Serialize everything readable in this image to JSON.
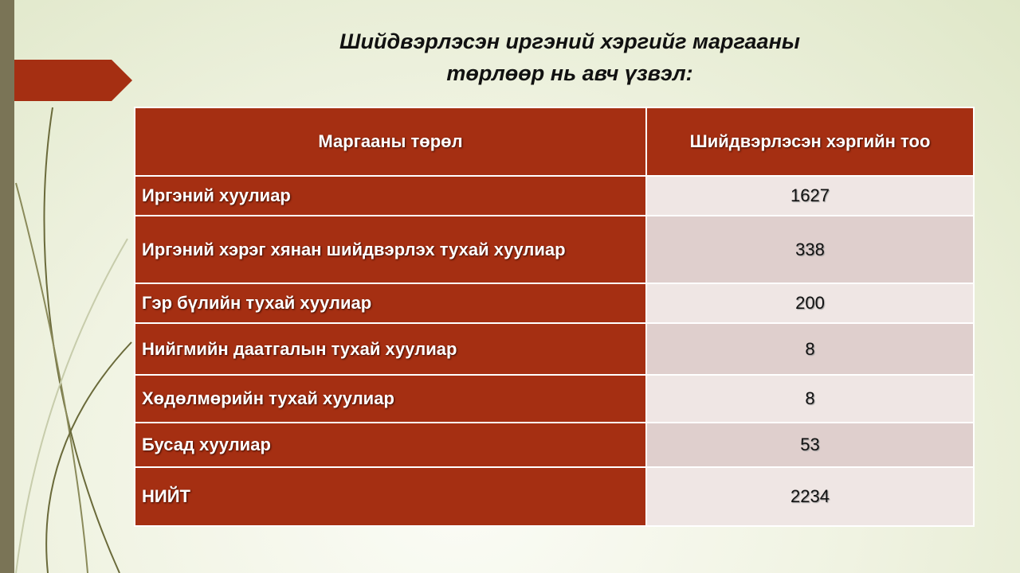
{
  "title_lines": [
    "Шийдвэрлэсэн иргэний хэргийг маргааны",
    "төрлөөр нь авч үзвэл:"
  ],
  "table": {
    "header": [
      "Маргааны төрөл",
      "Шийдвэрлэсэн хэргийн тоо"
    ],
    "rows": [
      [
        "Иргэний хуулиар",
        1627
      ],
      [
        "Иргэний хэрэг хянан шийдвэрлэх тухай хуулиар",
        338
      ],
      [
        "Гэр бүлийн тухай хуулиар",
        200
      ],
      [
        "Нийгмийн даатгалын тухай хуулиар",
        8
      ],
      [
        "Хөдөлмөрийн тухай хуулиар",
        8
      ],
      [
        "Бусад хуулиар",
        53
      ],
      [
        "НИЙТ",
        2234
      ]
    ]
  }
}
